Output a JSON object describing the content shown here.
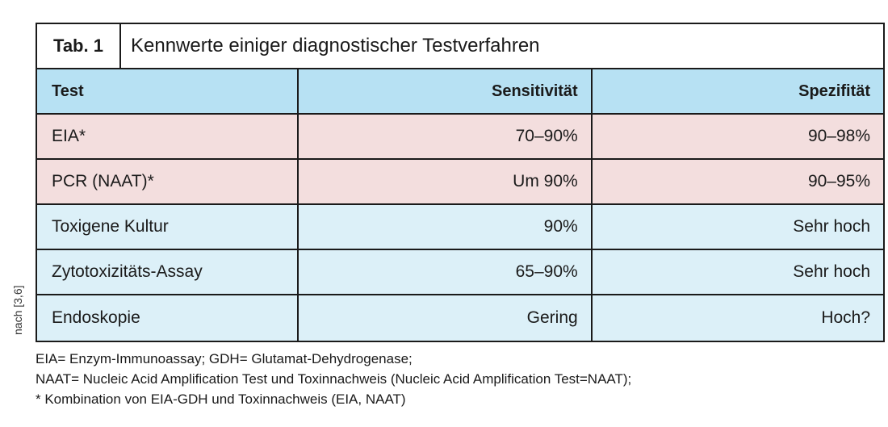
{
  "source_note": "nach [3,6]",
  "table": {
    "label": "Tab. 1",
    "title": "Kennwerte einiger diagnostischer Testverfahren",
    "headers": [
      "Test",
      "Sensitivität",
      "Spezifität"
    ],
    "rows": [
      {
        "test": "EIA*",
        "sensitivity": "70–90%",
        "specificity": "90–98%"
      },
      {
        "test": "PCR (NAAT)*",
        "sensitivity": "Um 90%",
        "specificity": "90–95%"
      },
      {
        "test": "Toxigene Kultur",
        "sensitivity": "90%",
        "specificity": "Sehr hoch"
      },
      {
        "test": "Zytotoxizitäts-Assay",
        "sensitivity": "65–90%",
        "specificity": "Sehr hoch"
      },
      {
        "test": "Endoskopie",
        "sensitivity": "Gering",
        "specificity": "Hoch?"
      }
    ]
  },
  "footnotes": [
    "EIA= Enzym-Immunoassay; GDH= Glutamat-Dehydrogenase;",
    "NAAT= Nucleic Acid Amplification Test und Toxinnachweis (Nucleic Acid Amplification Test=NAAT);",
    "* Kombination von EIA-GDH und Toxinnachweis (EIA, NAAT)"
  ],
  "colors": {
    "header_bg": "#b7e1f3",
    "pink_row_bg": "#f3dede",
    "blue_row_bg": "#dcf0f8",
    "border": "#1a1a1a"
  }
}
